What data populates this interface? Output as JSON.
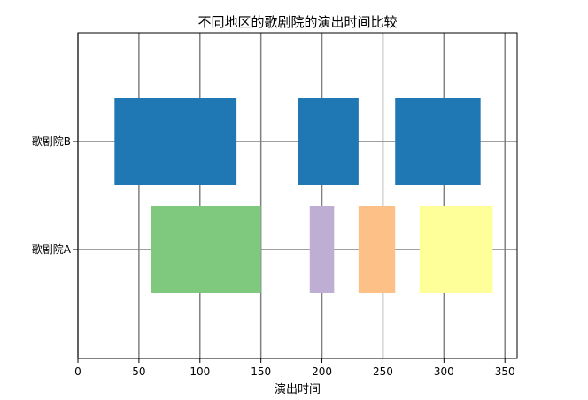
{
  "chart_data": {
    "type": "broken_barh",
    "title": "不同地区的歌剧院的演出时间比较",
    "xlabel": "演出时间",
    "ylabel": "",
    "xlim": [
      0,
      360
    ],
    "xticks": [
      0,
      50,
      100,
      150,
      200,
      250,
      300,
      350
    ],
    "grid": true,
    "categories": [
      "歌剧院A",
      "歌剧院B"
    ],
    "series": [
      {
        "category": "歌剧院B",
        "ranges": [
          {
            "start": 30,
            "width": 100,
            "color": "#1f77b4"
          },
          {
            "start": 180,
            "width": 50,
            "color": "#1f77b4"
          },
          {
            "start": 260,
            "width": 70,
            "color": "#1f77b4"
          }
        ]
      },
      {
        "category": "歌剧院A",
        "ranges": [
          {
            "start": 60,
            "width": 90,
            "color": "#7fc97f"
          },
          {
            "start": 190,
            "width": 20,
            "color": "#beaed4"
          },
          {
            "start": 230,
            "width": 30,
            "color": "#fdc086"
          },
          {
            "start": 280,
            "width": 60,
            "color": "#ffff99"
          }
        ]
      }
    ]
  }
}
